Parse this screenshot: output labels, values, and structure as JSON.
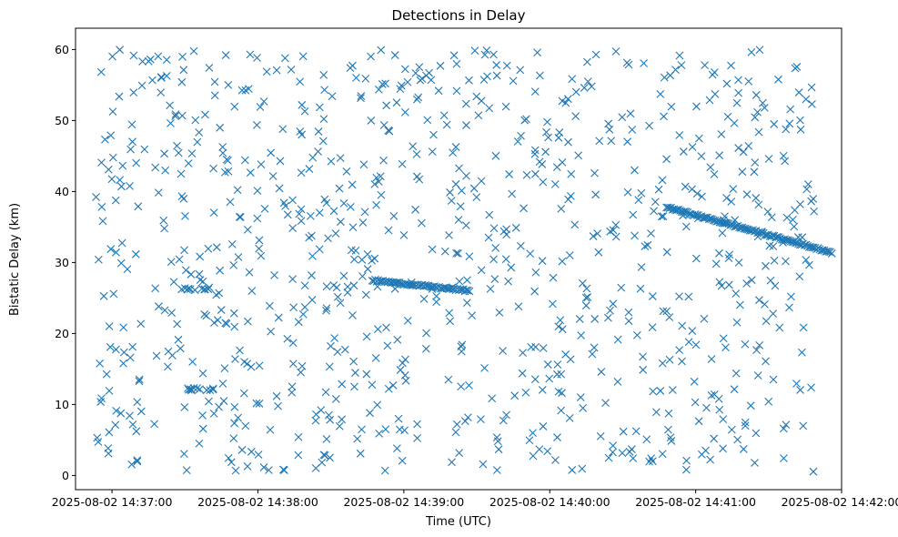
{
  "chart_data": {
    "type": "scatter",
    "title": "Detections in Delay",
    "xlabel": "Time (UTC)",
    "ylabel": "Bistatic Delay (km)",
    "marker": "x",
    "color": "#1f77b4",
    "grid": false,
    "xlim_seconds_after_14_36_45": [
      0,
      315
    ],
    "ylim": [
      -2,
      63
    ],
    "x_ticks": [
      {
        "label": "2025-08-02 14:37:00",
        "seconds_after_14_36_45": 15
      },
      {
        "label": "2025-08-02 14:38:00",
        "seconds_after_14_36_45": 75
      },
      {
        "label": "2025-08-02 14:39:00",
        "seconds_after_14_36_45": 135
      },
      {
        "label": "2025-08-02 14:40:00",
        "seconds_after_14_36_45": 195
      },
      {
        "label": "2025-08-02 14:41:00",
        "seconds_after_14_36_45": 255
      },
      {
        "label": "2025-08-02 14:42:00",
        "seconds_after_14_36_45": 315
      }
    ],
    "y_ticks": [
      0,
      10,
      20,
      30,
      40,
      50,
      60
    ],
    "tracks": [
      {
        "t_start": "2025-08-02 14:38:47",
        "t_end": "2025-08-02 14:39:27",
        "delay_start": 27.5,
        "delay_end": 26.0
      },
      {
        "t_start": "2025-08-02 14:40:48",
        "t_end": "2025-08-02 14:41:56",
        "delay_start": 37.8,
        "delay_end": 31.4
      }
    ],
    "clusters": [
      {
        "t": "2025-08-02 14:37:34",
        "delay": 26.3
      },
      {
        "t": "2025-08-02 14:37:36",
        "delay": 12.2
      }
    ]
  }
}
